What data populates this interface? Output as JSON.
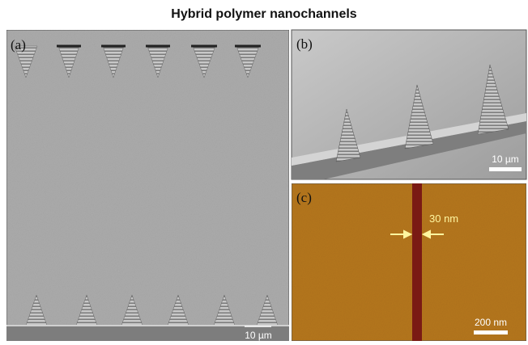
{
  "title": "Hybrid polymer nanochannels",
  "panels": [
    {
      "label": "(a)",
      "scale_bar": "10 µm"
    },
    {
      "label": "(b)",
      "scale_bar": "10 µm"
    },
    {
      "label": "(c)",
      "scale_bar": "200 nm",
      "annotation": "30 nm"
    }
  ]
}
